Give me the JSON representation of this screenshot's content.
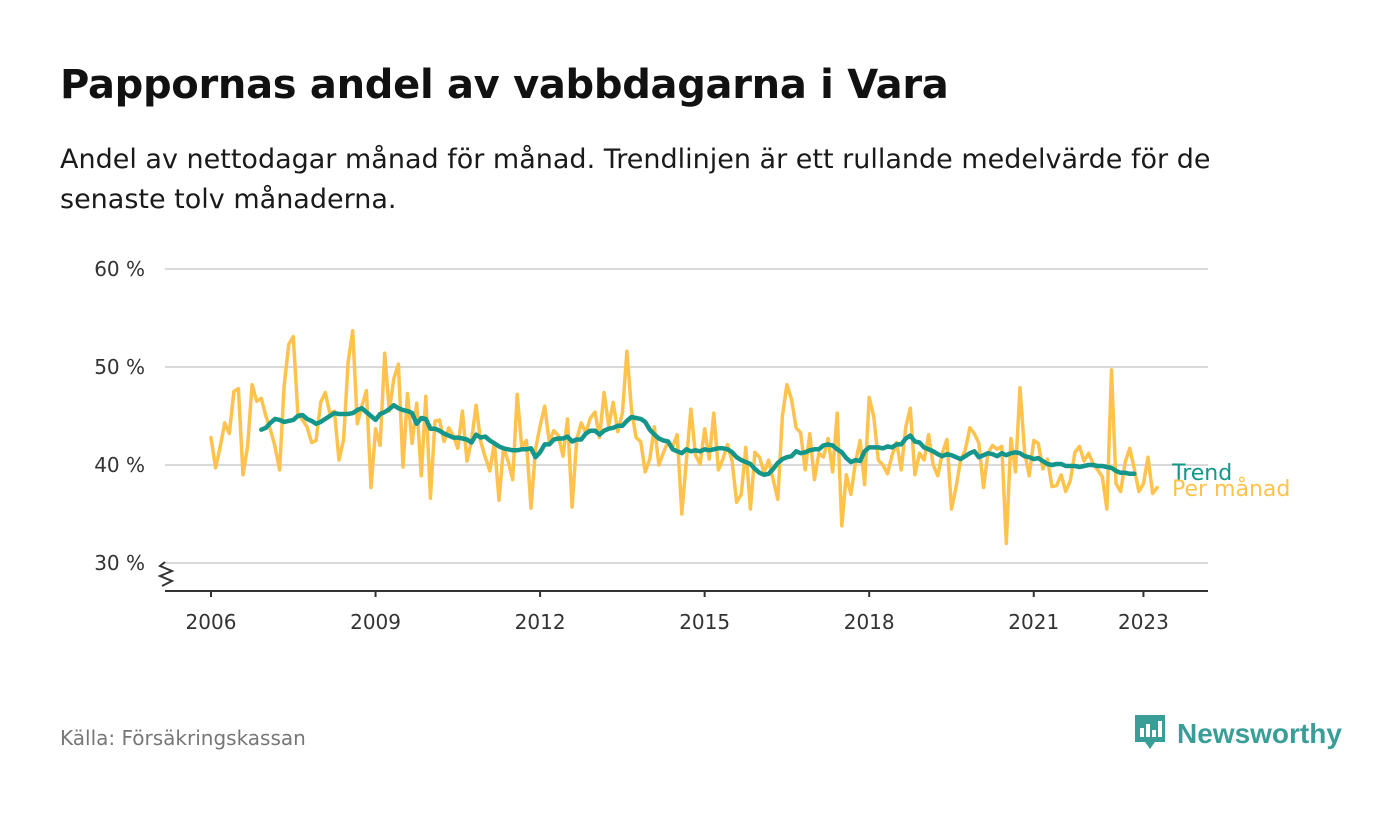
{
  "title": "Pappornas andel av vabbdagarna i Vara",
  "subtitle": "Andel av nettodagar månad för månad. Trendlinjen är ett rullande medelvärde för de senaste tolv månaderna.",
  "source": "Källa: Försäkringskassan",
  "brand": {
    "name": "Newsworthy",
    "icon": "newsworthy-logo-icon"
  },
  "colors": {
    "monthly": "#ffc34d",
    "trend": "#14968a",
    "grid": "#d9d9d9",
    "axis": "#333333"
  },
  "chart_data": {
    "type": "line",
    "title": "Pappornas andel av vabbdagarna i Vara",
    "xlabel": "",
    "ylabel": "",
    "ylim": [
      30,
      60
    ],
    "y_ticks": [
      {
        "value": 30,
        "label": "30 %"
      },
      {
        "value": 40,
        "label": "40 %"
      },
      {
        "value": 50,
        "label": "50 %"
      },
      {
        "value": 60,
        "label": "60 %"
      }
    ],
    "x_ticks": [
      {
        "value": "2006-01",
        "label": "2006"
      },
      {
        "value": "2009-01",
        "label": "2009"
      },
      {
        "value": "2012-01",
        "label": "2012"
      },
      {
        "value": "2015-01",
        "label": "2015"
      },
      {
        "value": "2018-01",
        "label": "2018"
      },
      {
        "value": "2021-01",
        "label": "2021"
      },
      {
        "value": "2023-01",
        "label": "2023"
      }
    ],
    "x_start": "2006-01",
    "grid": true,
    "legend": "end-of-line labels",
    "axis_break": true,
    "series": [
      {
        "name": "Per månad",
        "color": "#ffc34d",
        "values": [
          42.8,
          39.7,
          41.8,
          44.3,
          43.2,
          47.5,
          47.8,
          39.0,
          41.9,
          48.2,
          46.5,
          46.8,
          45.0,
          43.6,
          41.9,
          39.5,
          48.0,
          52.3,
          53.1,
          45.3,
          44.6,
          43.9,
          42.3,
          42.5,
          46.4,
          47.4,
          45.3,
          45.5,
          40.5,
          42.6,
          50.5,
          53.7,
          44.2,
          46.0,
          47.6,
          37.7,
          43.7,
          42.0,
          51.4,
          45.5,
          48.8,
          50.3,
          39.8,
          47.3,
          42.2,
          46.3,
          38.9,
          47.0,
          36.6,
          44.5,
          44.6,
          42.4,
          43.8,
          43.0,
          41.7,
          45.5,
          40.4,
          42.5,
          46.1,
          42.4,
          40.8,
          39.4,
          42.3,
          36.4,
          41.8,
          40.4,
          38.5,
          47.2,
          41.8,
          42.5,
          35.6,
          41.6,
          44.0,
          46.0,
          42.4,
          43.5,
          43.0,
          40.9,
          44.7,
          35.7,
          42.6,
          44.3,
          43.3,
          44.8,
          45.4,
          42.8,
          47.4,
          44.0,
          46.4,
          43.4,
          45.3,
          51.6,
          45.6,
          42.8,
          42.4,
          39.3,
          40.6,
          43.9,
          40.0,
          41.3,
          42.4,
          41.9,
          43.1,
          35.0,
          40.5,
          45.7,
          41.0,
          40.1,
          43.7,
          40.6,
          45.3,
          39.5,
          40.6,
          42.1,
          40.4,
          36.2,
          37.0,
          41.8,
          35.5,
          41.3,
          40.8,
          39.2,
          40.5,
          38.5,
          36.5,
          45.0,
          48.2,
          46.7,
          43.8,
          43.3,
          39.5,
          43.2,
          38.5,
          41.2,
          40.8,
          42.7,
          39.3,
          45.3,
          33.8,
          39.0,
          37.0,
          40.3,
          42.5,
          38.0,
          46.9,
          44.9,
          40.5,
          40.0,
          39.1,
          41.0,
          42.3,
          39.5,
          43.9,
          45.8,
          39.0,
          41.2,
          40.5,
          43.1,
          40.0,
          38.9,
          41.2,
          42.6,
          35.5,
          37.7,
          40.5,
          41.5,
          43.8,
          43.2,
          42.2,
          37.7,
          41.2,
          42.0,
          41.6,
          41.9,
          32.0,
          42.7,
          39.3,
          47.9,
          41.3,
          38.9,
          42.5,
          42.2,
          39.6,
          40.6,
          37.8,
          37.9,
          39.0,
          37.3,
          38.4,
          41.3,
          41.9,
          40.4,
          41.2,
          40.1,
          39.5,
          38.8,
          35.5,
          49.7,
          38.1,
          37.3,
          40.3,
          41.7,
          39.6,
          37.3,
          38.1,
          40.8,
          37.1,
          37.7
        ]
      },
      {
        "name": "Trend",
        "color": "#14968a",
        "start": "2006-12",
        "values": [
          43.6,
          43.8,
          44.3,
          44.7,
          44.6,
          44.4,
          44.5,
          44.6,
          45.0,
          45.1,
          44.7,
          44.5,
          44.2,
          44.4,
          44.7,
          45.0,
          45.3,
          45.2,
          45.2,
          45.2,
          45.3,
          45.6,
          45.8,
          45.4,
          45.0,
          44.6,
          45.2,
          45.4,
          45.7,
          46.1,
          45.8,
          45.6,
          45.5,
          45.3,
          44.2,
          44.8,
          44.7,
          43.7,
          43.7,
          43.5,
          43.2,
          43.0,
          42.8,
          42.8,
          42.7,
          42.6,
          42.3,
          43.1,
          42.8,
          42.9,
          42.5,
          42.2,
          41.9,
          41.7,
          41.6,
          41.5,
          41.5,
          41.6,
          41.6,
          41.7,
          40.8,
          41.3,
          42.1,
          42.1,
          42.6,
          42.7,
          42.7,
          42.9,
          42.4,
          42.6,
          42.6,
          43.2,
          43.5,
          43.5,
          43.1,
          43.5,
          43.7,
          43.8,
          44.0,
          44.0,
          44.5,
          44.9,
          44.8,
          44.7,
          44.4,
          43.6,
          43.1,
          42.7,
          42.5,
          42.4,
          41.6,
          41.4,
          41.2,
          41.6,
          41.4,
          41.5,
          41.4,
          41.6,
          41.5,
          41.6,
          41.7,
          41.7,
          41.6,
          41.3,
          40.8,
          40.5,
          40.3,
          40.1,
          39.6,
          39.2,
          39.0,
          39.1,
          39.6,
          40.2,
          40.6,
          40.8,
          40.9,
          41.4,
          41.2,
          41.3,
          41.5,
          41.6,
          41.6,
          42.0,
          42.1,
          42.0,
          41.6,
          41.3,
          40.7,
          40.3,
          40.5,
          40.4,
          41.4,
          41.8,
          41.8,
          41.8,
          41.7,
          41.9,
          41.8,
          42.1,
          42.1,
          42.7,
          43.0,
          42.4,
          42.3,
          41.8,
          41.6,
          41.4,
          41.1,
          40.9,
          41.1,
          41.0,
          40.8,
          40.6,
          40.9,
          41.2,
          41.4,
          40.8,
          41.0,
          41.2,
          41.1,
          40.9,
          41.2,
          41.0,
          41.2,
          41.3,
          41.2,
          40.9,
          40.8,
          40.6,
          40.7,
          40.4,
          40.1,
          40.0,
          40.1,
          40.1,
          39.9,
          39.9,
          39.9,
          39.8,
          39.9,
          40.0,
          40.0,
          39.9,
          39.9,
          39.8,
          39.7,
          39.4,
          39.2,
          39.2,
          39.1,
          39.1
        ]
      }
    ]
  }
}
